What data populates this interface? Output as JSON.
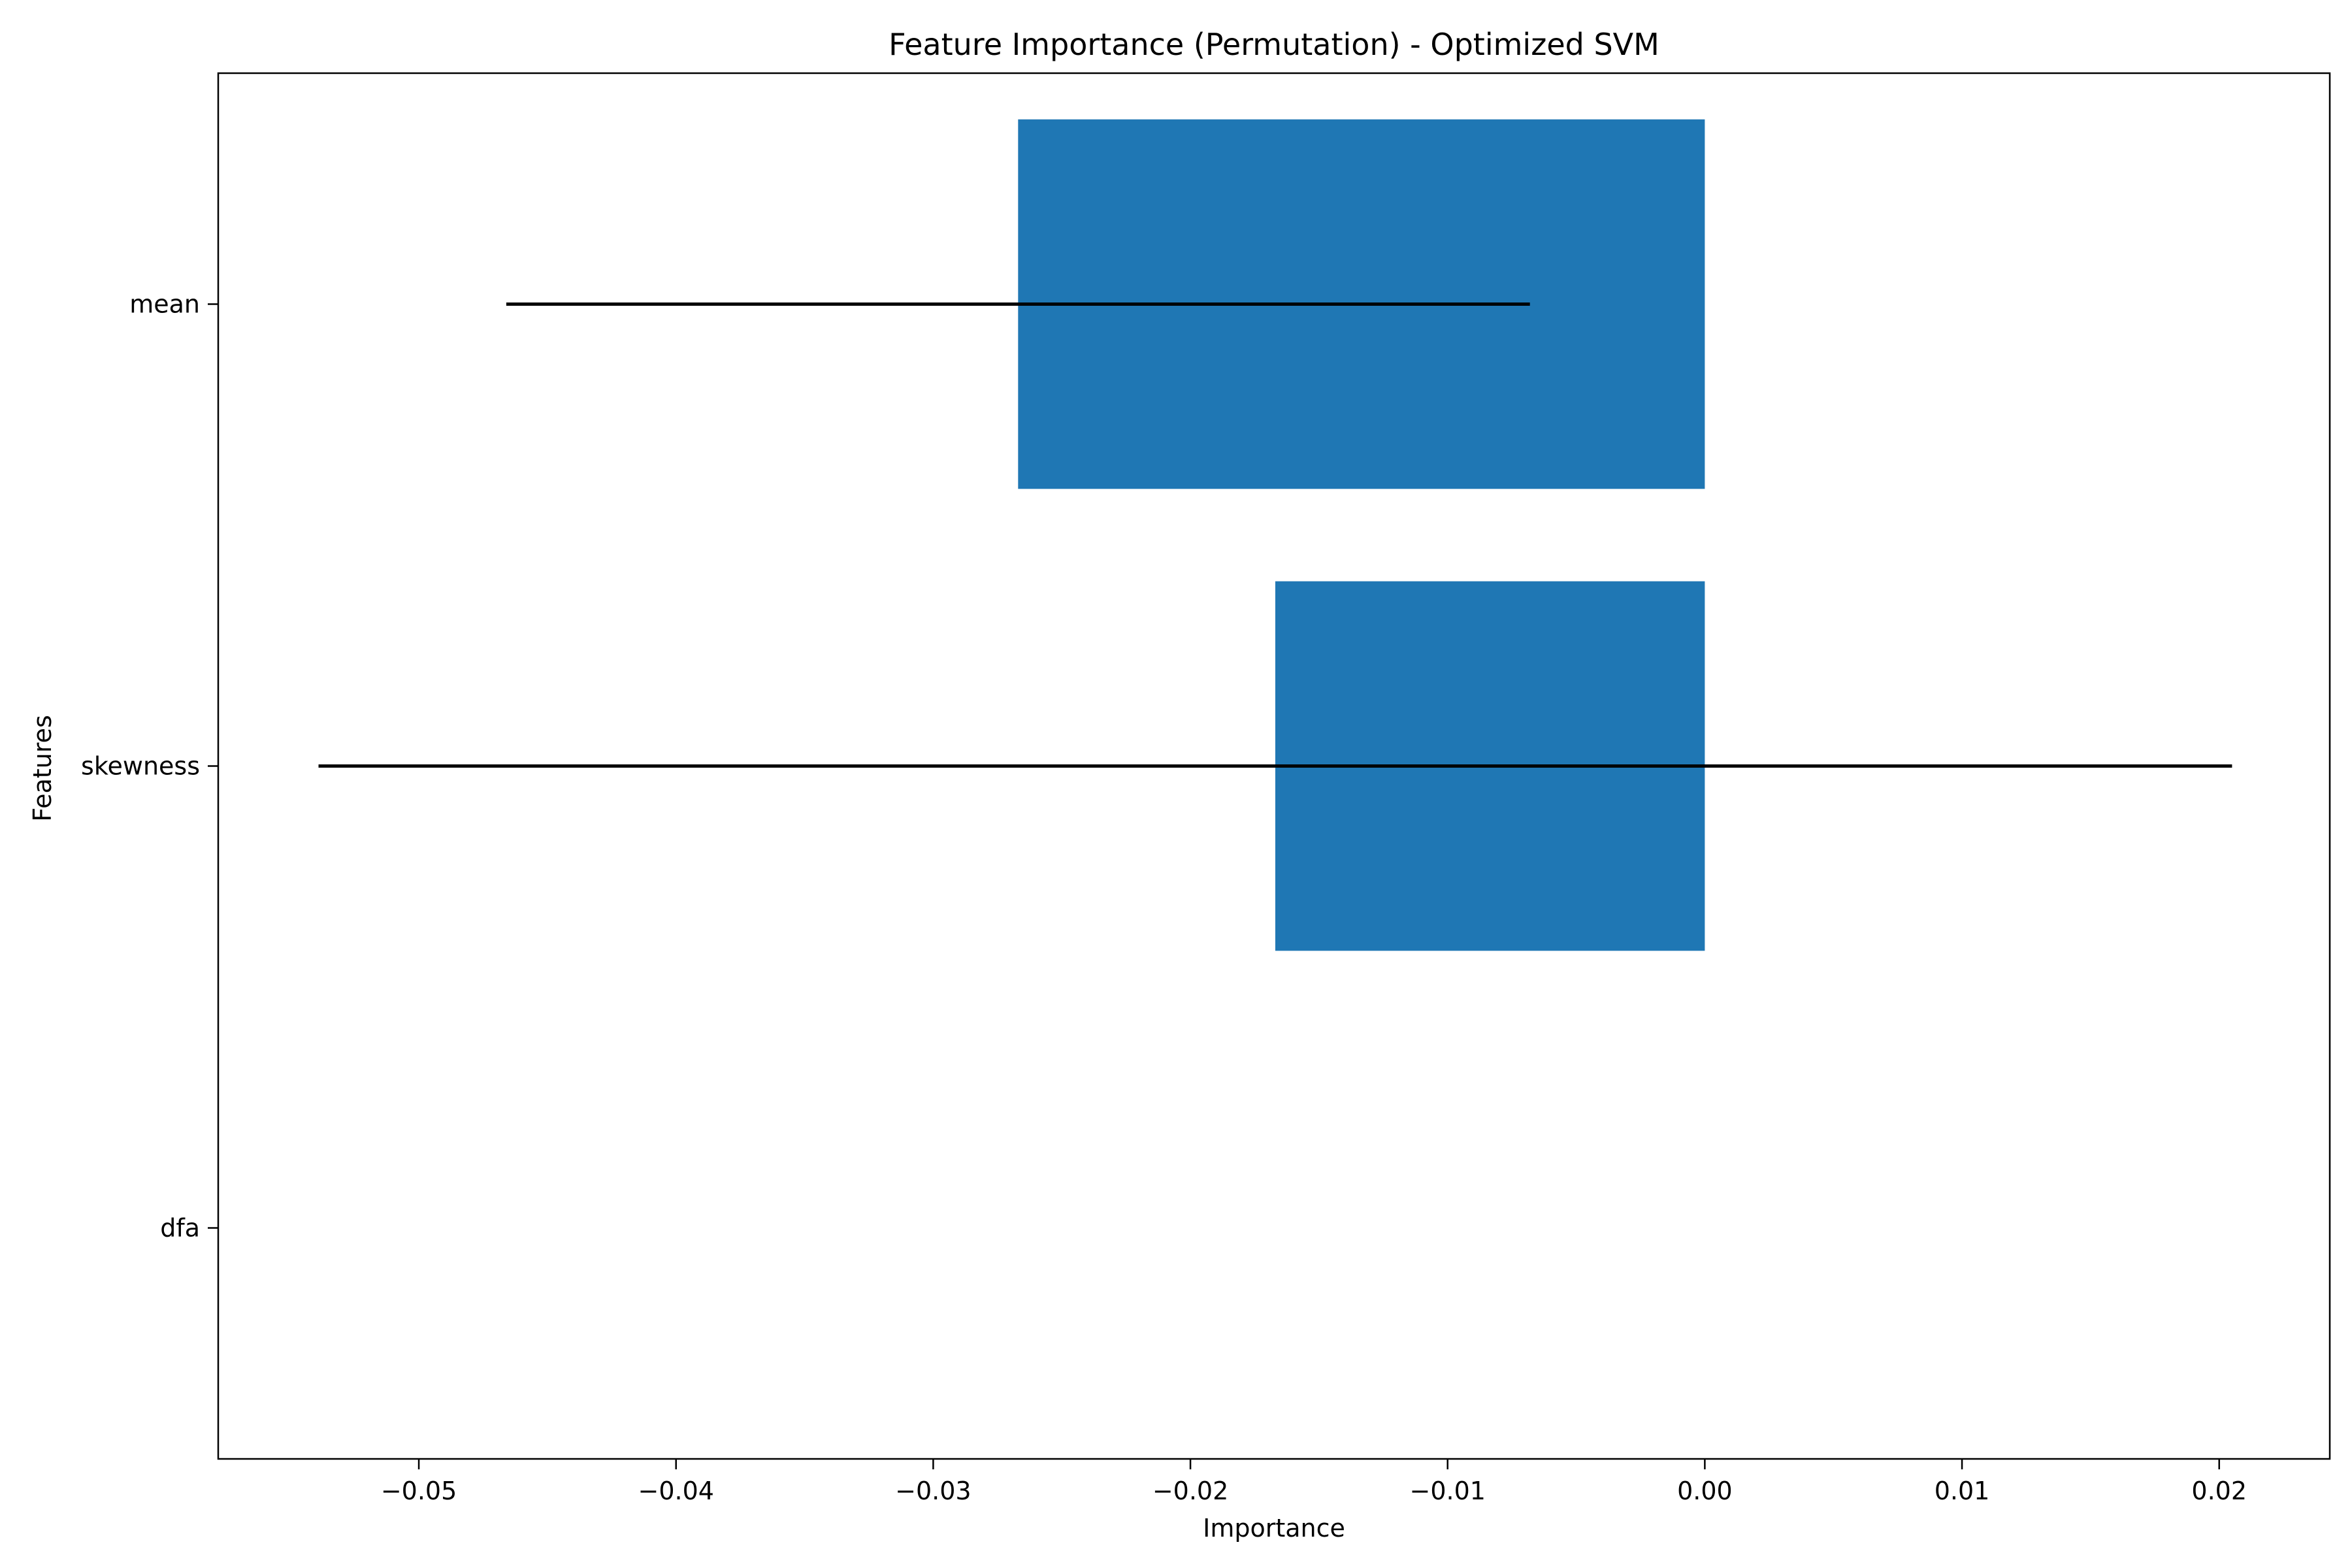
{
  "chart_data": {
    "type": "bar",
    "orientation": "horizontal",
    "title": "Feature Importance (Permutation) - Optimized SVM",
    "xlabel": "Importance",
    "ylabel": "Features",
    "categories": [
      "mean",
      "skewness",
      "dfa"
    ],
    "values": [
      -0.0267,
      -0.0167,
      0.0
    ],
    "error": [
      0.0199,
      0.0372,
      0.0
    ],
    "xlim": [
      -0.0578,
      0.0243
    ],
    "xticks": [
      -0.05,
      -0.04,
      -0.03,
      -0.02,
      -0.01,
      0.0,
      0.01,
      0.02
    ],
    "xtick_labels": [
      "−0.05",
      "−0.04",
      "−0.03",
      "−0.02",
      "−0.01",
      "0.00",
      "0.01",
      "0.02"
    ],
    "bar_color": "#1f77b4",
    "error_color": "#000000",
    "grid": false,
    "legend": "none"
  }
}
